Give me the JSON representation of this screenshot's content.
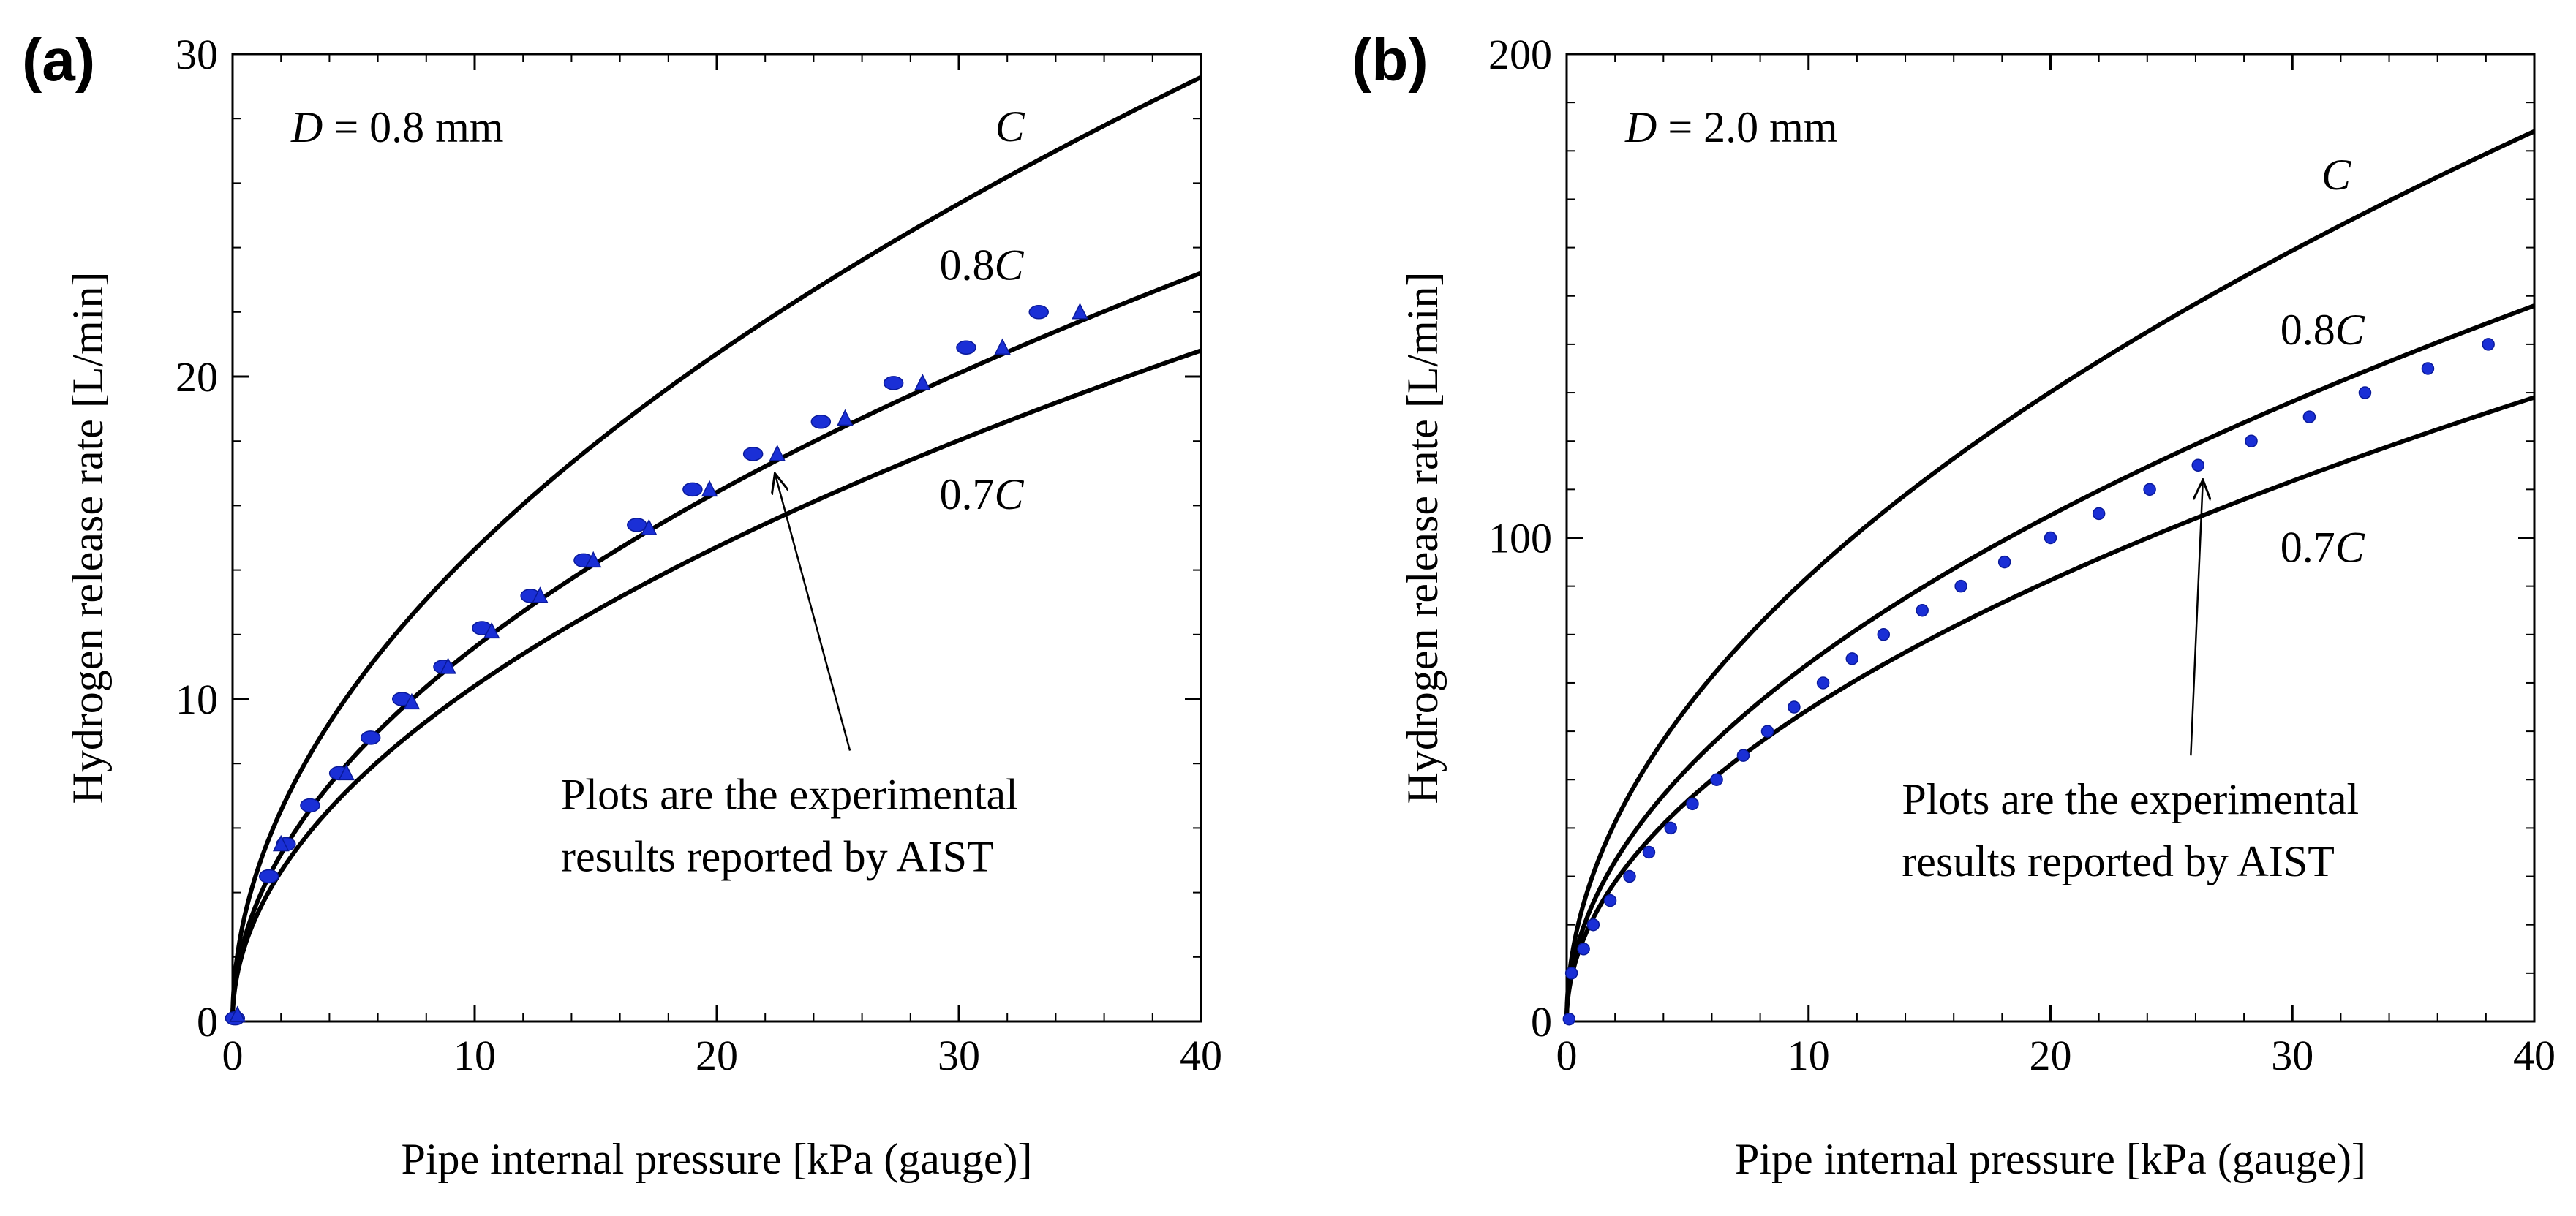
{
  "chart_data": [
    {
      "type": "line",
      "panel_label": "(a)",
      "diameter_label": {
        "var": "D",
        "rest": " = 0.8 mm"
      },
      "xlabel": "Pipe internal pressure [kPa (gauge)]",
      "ylabel": "Hydrogen release rate [L/min]",
      "xlim": [
        0,
        40
      ],
      "ylim": [
        0,
        30
      ],
      "x_ticks": [
        0,
        10,
        20,
        30,
        40
      ],
      "y_ticks": [
        0,
        10,
        20,
        30
      ],
      "x_minor_step": 2,
      "y_minor_step": 2,
      "series": [
        {
          "name": "C",
          "coef": "",
          "var": "C",
          "model": "k*sqrt(x)",
          "k": 4.63,
          "at_x_40": 29.3
        },
        {
          "name": "0.8C",
          "coef": "0.8",
          "var": "C",
          "model": "k*sqrt(x)",
          "k": 3.67,
          "at_x_40": 23.2
        },
        {
          "name": "0.7C",
          "coef": "0.7",
          "var": "C",
          "model": "k*sqrt(x)",
          "k": 3.29,
          "at_x_40": 20.8
        }
      ],
      "curve_label_positions": [
        {
          "series": "C",
          "x": 31.5,
          "y": 27.3
        },
        {
          "series": "0.8C",
          "x": 29.2,
          "y": 23.0
        },
        {
          "series": "0.7C",
          "x": 29.2,
          "y": 15.9
        }
      ],
      "experimental": {
        "name": "AIST experimental results",
        "points_a": [
          {
            "x": 0.1,
            "y": 0.1
          },
          {
            "x": 1.5,
            "y": 4.5
          },
          {
            "x": 2.2,
            "y": 5.5
          },
          {
            "x": 3.2,
            "y": 6.7
          },
          {
            "x": 4.4,
            "y": 7.7
          },
          {
            "x": 5.7,
            "y": 8.8
          },
          {
            "x": 7.0,
            "y": 10.0
          },
          {
            "x": 8.7,
            "y": 11.0
          },
          {
            "x": 10.3,
            "y": 12.2
          },
          {
            "x": 12.3,
            "y": 13.2
          },
          {
            "x": 14.5,
            "y": 14.3
          },
          {
            "x": 16.7,
            "y": 15.4
          },
          {
            "x": 19.0,
            "y": 16.5
          },
          {
            "x": 21.5,
            "y": 17.6
          },
          {
            "x": 24.3,
            "y": 18.6
          },
          {
            "x": 27.3,
            "y": 19.8
          },
          {
            "x": 30.3,
            "y": 20.9
          },
          {
            "x": 33.3,
            "y": 22.0
          }
        ],
        "points_b": [
          {
            "x": 0.2,
            "y": 0.2
          },
          {
            "x": 2.0,
            "y": 5.5
          },
          {
            "x": 4.7,
            "y": 7.7
          },
          {
            "x": 7.4,
            "y": 9.9
          },
          {
            "x": 8.9,
            "y": 11.0
          },
          {
            "x": 10.7,
            "y": 12.1
          },
          {
            "x": 12.7,
            "y": 13.2
          },
          {
            "x": 14.9,
            "y": 14.3
          },
          {
            "x": 17.2,
            "y": 15.3
          },
          {
            "x": 19.7,
            "y": 16.5
          },
          {
            "x": 22.5,
            "y": 17.6
          },
          {
            "x": 25.3,
            "y": 18.7
          },
          {
            "x": 28.5,
            "y": 19.8
          },
          {
            "x": 31.8,
            "y": 20.9
          },
          {
            "x": 35.0,
            "y": 22.0
          }
        ]
      },
      "annotation": {
        "lines": [
          "Plots are the experimental",
          "results reported by AIST"
        ],
        "arrow_from": {
          "x": 25.5,
          "y": 8.4
        },
        "arrow_to": {
          "x": 22.4,
          "y": 17.0
        }
      }
    },
    {
      "type": "line",
      "panel_label": "(b)",
      "diameter_label": {
        "var": "D",
        "rest": " = 2.0 mm"
      },
      "xlabel": "Pipe internal pressure [kPa (gauge)]",
      "ylabel": "Hydrogen release rate [L/min]",
      "xlim": [
        0,
        40
      ],
      "ylim": [
        0,
        200
      ],
      "x_ticks": [
        0,
        10,
        20,
        30,
        40
      ],
      "y_ticks": [
        0,
        100,
        200
      ],
      "x_minor_step": 2,
      "y_minor_step": 10,
      "series": [
        {
          "name": "C",
          "coef": "",
          "var": "C",
          "model": "k*sqrt(x)",
          "k": 29.1,
          "at_x_40": 184
        },
        {
          "name": "0.8C",
          "coef": "0.8",
          "var": "C",
          "model": "k*sqrt(x)",
          "k": 23.4,
          "at_x_40": 148
        },
        {
          "name": "0.7C",
          "coef": "0.7",
          "var": "C",
          "model": "k*sqrt(x)",
          "k": 20.4,
          "at_x_40": 129
        }
      ],
      "curve_label_positions": [
        {
          "series": "C",
          "x": 31.2,
          "y": 172
        },
        {
          "series": "0.8C",
          "x": 29.5,
          "y": 140
        },
        {
          "series": "0.7C",
          "x": 29.5,
          "y": 95
        }
      ],
      "experimental": {
        "name": "AIST experimental results",
        "points": [
          {
            "x": 0.1,
            "y": 0.5
          },
          {
            "x": 0.2,
            "y": 10
          },
          {
            "x": 0.7,
            "y": 15
          },
          {
            "x": 1.1,
            "y": 20
          },
          {
            "x": 1.8,
            "y": 25
          },
          {
            "x": 2.6,
            "y": 30
          },
          {
            "x": 3.4,
            "y": 35
          },
          {
            "x": 4.3,
            "y": 40
          },
          {
            "x": 5.2,
            "y": 45
          },
          {
            "x": 6.2,
            "y": 50
          },
          {
            "x": 7.3,
            "y": 55
          },
          {
            "x": 8.3,
            "y": 60
          },
          {
            "x": 9.4,
            "y": 65
          },
          {
            "x": 10.6,
            "y": 70
          },
          {
            "x": 11.8,
            "y": 75
          },
          {
            "x": 13.1,
            "y": 80
          },
          {
            "x": 14.7,
            "y": 85
          },
          {
            "x": 16.3,
            "y": 90
          },
          {
            "x": 18.1,
            "y": 95
          },
          {
            "x": 20.0,
            "y": 100
          },
          {
            "x": 22.0,
            "y": 105
          },
          {
            "x": 24.1,
            "y": 110
          },
          {
            "x": 26.1,
            "y": 115
          },
          {
            "x": 28.3,
            "y": 120
          },
          {
            "x": 30.7,
            "y": 125
          },
          {
            "x": 33.0,
            "y": 130
          },
          {
            "x": 35.6,
            "y": 135
          },
          {
            "x": 38.1,
            "y": 140
          }
        ]
      },
      "annotation": {
        "lines": [
          "Plots are the experimental",
          "results reported by AIST"
        ],
        "arrow_from": {
          "x": 25.8,
          "y": 55
        },
        "arrow_to": {
          "x": 26.3,
          "y": 112
        }
      }
    }
  ],
  "colors": {
    "curve": "#000000",
    "marker": "#1a2fd6",
    "axis": "#000000"
  }
}
